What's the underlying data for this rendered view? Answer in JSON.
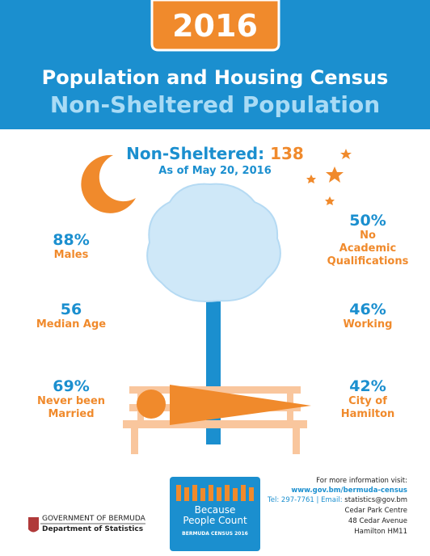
{
  "header": {
    "year": "2016",
    "title": "Population and Housing Census",
    "subtitle": "Non-Sheltered Population"
  },
  "headline": {
    "label": "Non-Sheltered:",
    "value": "138",
    "date": "As of May 20, 2016"
  },
  "stats": [
    {
      "value": "88%",
      "label_lines": [
        "Males"
      ]
    },
    {
      "value": "56",
      "label_lines": [
        "Median Age"
      ]
    },
    {
      "value": "69%",
      "label_lines": [
        "Never been",
        "Married"
      ]
    },
    {
      "value": "50%",
      "label_lines": [
        "No",
        "Academic",
        "Qualifications"
      ]
    },
    {
      "value": "46%",
      "label_lines": [
        "Working"
      ]
    },
    {
      "value": "42%",
      "label_lines": [
        "City of",
        "Hamilton"
      ]
    }
  ],
  "footer": {
    "info": "For more information visit:",
    "website": "www.gov.bm/bermuda-census",
    "tel": "Tel: 297-7761",
    "separator": "|",
    "email_label": "Email:",
    "email": "statistics@gov.bm",
    "address": [
      "Cedar Park Centre",
      "48 Cedar Avenue",
      "Hamilton HM11"
    ]
  },
  "logo": {
    "lines": [
      "Because",
      "People Count"
    ],
    "tag": "BERMUDA CENSUS 2016"
  },
  "organization": {
    "government": "GOVERNMENT OF BERMUDA",
    "department": "Department of Statistics"
  }
}
